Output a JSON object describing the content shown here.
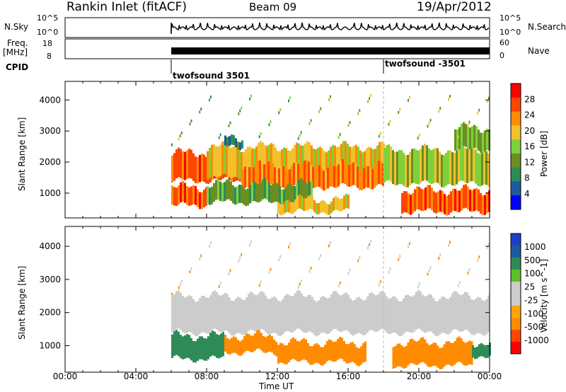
{
  "header": {
    "station": "Rankin Inlet (fitACF)",
    "beam": "Beam 09",
    "date": "19/Apr/2012"
  },
  "left_labels": {
    "nsky": "N.Sky",
    "nsky_top": "10^5",
    "nsky_bottom": "10^0",
    "freq": "Freq.",
    "freq_unit": "[MHz]",
    "freq_top": "18",
    "freq_bottom": "8",
    "cpid": "CPID"
  },
  "right_labels": {
    "nsearch": "N.Search",
    "nsearch_top": "10^5",
    "nsearch_bottom": "10^0",
    "nave": "Nave",
    "nave_top": "60",
    "nave_bottom": "0"
  },
  "cpid_events": [
    {
      "label": "twofsound 3501",
      "time_h": 6.0
    },
    {
      "label": "twofsound -3501",
      "time_h": 18.0
    }
  ],
  "colors": {
    "power": [
      "#0000ff",
      "#1e5a9e",
      "#2e8b57",
      "#6b8e23",
      "#7fd13b",
      "#f2c12e",
      "#ff8c00",
      "#ff4500",
      "#ff0000"
    ],
    "velocity": [
      "#ff0000",
      "#ff4500",
      "#ff8c00",
      "#ffa500",
      "#cccccc",
      "#cccccc",
      "#5cbf2a",
      "#2e8b57",
      "#1e5a9e",
      "#1e40c8"
    ]
  },
  "chart_data": [
    {
      "type": "heatmap",
      "name": "power",
      "xlabel": "",
      "ylabel": "Slant Range [km]",
      "xlim": [
        0,
        24
      ],
      "ylim": [
        200,
        4600
      ],
      "yticks": [
        "1000",
        "2000",
        "3000",
        "4000"
      ],
      "colorbar_label": "Power [dB]",
      "colorbar_ticks": [
        "4",
        "8",
        "12",
        "16",
        "20",
        "24",
        "28"
      ],
      "data_start_h": 6.0,
      "bands": [
        {
          "t0": 6.0,
          "t1": 10.0,
          "r0": 1400,
          "r1": 2300,
          "value": 26
        },
        {
          "t0": 8.0,
          "t1": 18.0,
          "r0": 1500,
          "r1": 2500,
          "value": 20
        },
        {
          "t0": 10.0,
          "t1": 18.0,
          "r0": 1200,
          "r1": 1900,
          "value": 24
        },
        {
          "t0": 18.0,
          "t1": 24.0,
          "r0": 1300,
          "r1": 2400,
          "value": 16
        },
        {
          "t0": 6.0,
          "t1": 8.0,
          "r0": 600,
          "r1": 1200,
          "value": 26
        },
        {
          "t0": 8.0,
          "t1": 14.0,
          "r0": 700,
          "r1": 1300,
          "value": 12
        },
        {
          "t0": 12.0,
          "t1": 16.0,
          "r0": 400,
          "r1": 800,
          "value": 20
        },
        {
          "t0": 19.0,
          "t1": 24.0,
          "r0": 400,
          "r1": 1100,
          "value": 26
        },
        {
          "t0": 22.0,
          "t1": 24.0,
          "r0": 2400,
          "r1": 3100,
          "value": 14
        },
        {
          "t0": 9.0,
          "t1": 10.0,
          "r0": 2500,
          "r1": 2800,
          "value": 8
        }
      ]
    },
    {
      "type": "heatmap",
      "name": "velocity",
      "xlabel": "Time UT",
      "ylabel": "Slant Range [km]",
      "xlim": [
        0,
        24
      ],
      "ylim": [
        200,
        4600
      ],
      "xticks": [
        "00:00",
        "04:00",
        "08:00",
        "12:00",
        "16:00",
        "20:00",
        "00:00"
      ],
      "yticks": [
        "1000",
        "2000",
        "3000",
        "4000"
      ],
      "colorbar_label": "Velocity [m s^-1]",
      "colorbar_ticks": [
        "-1000",
        "-500",
        "-100",
        "-25",
        "25",
        "100",
        "500",
        "1000"
      ],
      "data_start_h": 6.0,
      "bands": [
        {
          "t0": 6.0,
          "t1": 24.0,
          "r0": 1400,
          "r1": 2500,
          "value": 0
        },
        {
          "t0": 6.0,
          "t1": 9.0,
          "r0": 600,
          "r1": 1300,
          "value": 300
        },
        {
          "t0": 9.0,
          "t1": 12.0,
          "r0": 800,
          "r1": 1300,
          "value": -200
        },
        {
          "t0": 12.0,
          "t1": 17.0,
          "r0": 500,
          "r1": 1100,
          "value": -200
        },
        {
          "t0": 18.5,
          "t1": 23.0,
          "r0": 400,
          "r1": 1100,
          "value": -200
        },
        {
          "t0": 23.0,
          "t1": 24.0,
          "r0": 700,
          "r1": 1100,
          "value": 150
        }
      ]
    }
  ]
}
